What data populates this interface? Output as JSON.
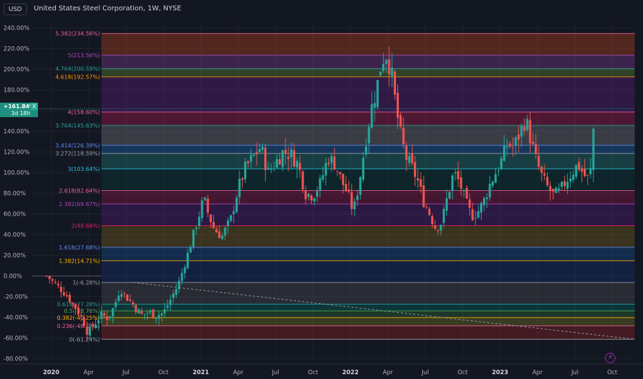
{
  "header": {
    "currency": "USD",
    "title": "United States Steel Corporation, 1W, NYSE"
  },
  "price_badge": {
    "value": "+161.84%",
    "countdown": "3d 18h",
    "close_label": "X"
  },
  "icons": {
    "bolt": "lightning-icon"
  },
  "colors": {
    "background": "#131722",
    "up": "#26a69a",
    "down": "#ef5350",
    "axis_text": "#b2b5be",
    "grid": "#1e222d"
  },
  "chart_data": {
    "type": "candlestick",
    "title": "United States Steel Corporation, 1W, NYSE",
    "y_axis": {
      "unit": "%",
      "ticks": [
        "240.00%",
        "220.00%",
        "200.00%",
        "180.00%",
        "160.00%",
        "140.00%",
        "120.00%",
        "100.00%",
        "80.00%",
        "60.00%",
        "40.00%",
        "20.00%",
        "0.00%",
        "-20.00%",
        "-40.00%",
        "-60.00%",
        "-80.00%"
      ],
      "range": [
        -85,
        247
      ]
    },
    "x_axis": {
      "ticks": [
        "2020",
        "Apr",
        "Jul",
        "Oct",
        "2021",
        "Apr",
        "Jul",
        "Oct",
        "2022",
        "Apr",
        "Jul",
        "Oct",
        "2023",
        "Apr",
        "Jul",
        "Oct"
      ],
      "ticks_years": [
        2020.0,
        2020.25,
        2020.5,
        2020.75,
        2021.0,
        2021.25,
        2021.5,
        2021.75,
        2022.0,
        2022.25,
        2022.5,
        2022.75,
        2023.0,
        2023.25,
        2023.5,
        2023.75
      ],
      "range_years": [
        2019.87,
        2023.9
      ]
    },
    "current_value": 161.84,
    "fib_levels": [
      {
        "ratio": "5.382",
        "value": 234.56,
        "label": "5.382(234.56%)",
        "color": "#f06292"
      },
      {
        "ratio": "5",
        "value": 213.56,
        "label": "5(213.56%)",
        "color": "#ab47bc"
      },
      {
        "ratio": "4.764",
        "value": 200.59,
        "label": "4.764(200.59%)",
        "color": "#26a69a"
      },
      {
        "ratio": "4.618",
        "value": 192.57,
        "label": "4.618(192.57%)",
        "color": "#ff9800"
      },
      {
        "ratio": "4",
        "value": 158.6,
        "label": "4(158.60%)",
        "color": "#f06292"
      },
      {
        "ratio": "3.764",
        "value": 145.63,
        "label": "3.764(145.63%)",
        "color": "#26a69a"
      },
      {
        "ratio": "3.414",
        "value": 126.39,
        "label": "3.414(126.39%)",
        "color": "#5c8cff"
      },
      {
        "ratio": "3.272",
        "value": 118.59,
        "label": "3.272(118.59%)",
        "color": "#9aa0aa"
      },
      {
        "ratio": "3",
        "value": 103.64,
        "label": "3(103.64%)",
        "color": "#26c6da"
      },
      {
        "ratio": "2.618",
        "value": 82.64,
        "label": "2.618(82.64%)",
        "color": "#f06292"
      },
      {
        "ratio": "2.382",
        "value": 69.67,
        "label": "2.382(69.67%)",
        "color": "#ab47bc"
      },
      {
        "ratio": "2",
        "value": 48.68,
        "label": "2(48.68%)",
        "color": "#e91e63"
      },
      {
        "ratio": "1.618",
        "value": 27.68,
        "label": "1.618(27.68%)",
        "color": "#5c8cff"
      },
      {
        "ratio": "1.382",
        "value": 14.71,
        "label": "1.382(14.71%)",
        "color": "#ffb300"
      },
      {
        "ratio": "1",
        "value": -6.28,
        "label": "1(-6.28%)",
        "color": "#9aa0aa"
      },
      {
        "ratio": "0.618",
        "value": -27.28,
        "label": "0.618(-27.28%)",
        "color": "#26a69a"
      },
      {
        "ratio": "0.5",
        "value": -33.76,
        "label": "0.5(-33.76%)",
        "color": "#4caf50"
      },
      {
        "ratio": "0.382",
        "value": -40.25,
        "label": "0.382(-40.25%)",
        "color": "#ffb300"
      },
      {
        "ratio": "0.236",
        "value": -48.27,
        "label": "0.236(-48.27%)",
        "color": "#f06292"
      },
      {
        "ratio": "0",
        "value": -61.24,
        "label": "0(-61.24%)",
        "color": "#9aa0aa"
      }
    ],
    "fib_bands": [
      {
        "from": 213.56,
        "to": 234.56,
        "color": "#f4511e"
      },
      {
        "from": 200.59,
        "to": 213.56,
        "color": "#ab47bc"
      },
      {
        "from": 192.57,
        "to": 200.59,
        "color": "#7cb342"
      },
      {
        "from": 158.6,
        "to": 192.57,
        "color": "#7b1fa2"
      },
      {
        "from": 145.63,
        "to": 158.6,
        "color": "#e91e63"
      },
      {
        "from": 126.39,
        "to": 145.63,
        "color": "#9e9e9e"
      },
      {
        "from": 118.59,
        "to": 126.39,
        "color": "#1e88e5"
      },
      {
        "from": 103.64,
        "to": 118.59,
        "color": "#26a69a"
      },
      {
        "from": 82.64,
        "to": 103.64,
        "color": "#004d40"
      },
      {
        "from": 69.67,
        "to": 82.64,
        "color": "#c2185b"
      },
      {
        "from": 48.68,
        "to": 69.67,
        "color": "#6a1b9a"
      },
      {
        "from": 27.68,
        "to": 48.68,
        "color": "#9e7c1a"
      },
      {
        "from": 14.71,
        "to": 27.68,
        "color": "#1565c0"
      },
      {
        "from": -6.28,
        "to": 14.71,
        "color": "#1a3a8f"
      },
      {
        "from": -27.28,
        "to": -6.28,
        "color": "#616161"
      },
      {
        "from": -33.76,
        "to": -27.28,
        "color": "#00897b"
      },
      {
        "from": -40.25,
        "to": -33.76,
        "color": "#388e3c"
      },
      {
        "from": -48.27,
        "to": -40.25,
        "color": "#9e9d24"
      },
      {
        "from": -61.24,
        "to": -48.27,
        "color": "#c62828"
      }
    ],
    "trend_line": {
      "from": [
        2020.55,
        -6.28
      ],
      "to": [
        2023.9,
        -61.24
      ]
    },
    "close_path": [
      [
        2019.97,
        0
      ],
      [
        2020.03,
        -8
      ],
      [
        2020.1,
        -18
      ],
      [
        2020.17,
        -32
      ],
      [
        2020.22,
        -45
      ],
      [
        2020.25,
        -56
      ],
      [
        2020.28,
        -48
      ],
      [
        2020.33,
        -38
      ],
      [
        2020.38,
        -40
      ],
      [
        2020.42,
        -30
      ],
      [
        2020.46,
        -12
      ],
      [
        2020.5,
        -20
      ],
      [
        2020.55,
        -28
      ],
      [
        2020.6,
        -38
      ],
      [
        2020.65,
        -35
      ],
      [
        2020.7,
        -38
      ],
      [
        2020.75,
        -36
      ],
      [
        2020.8,
        -22
      ],
      [
        2020.85,
        -8
      ],
      [
        2020.9,
        15
      ],
      [
        2020.94,
        35
      ],
      [
        2020.98,
        55
      ],
      [
        2021.02,
        75
      ],
      [
        2021.05,
        60
      ],
      [
        2021.09,
        45
      ],
      [
        2021.14,
        38
      ],
      [
        2021.2,
        55
      ],
      [
        2021.25,
        85
      ],
      [
        2021.3,
        105
      ],
      [
        2021.35,
        115
      ],
      [
        2021.4,
        125
      ],
      [
        2021.45,
        100
      ],
      [
        2021.5,
        110
      ],
      [
        2021.55,
        120
      ],
      [
        2021.6,
        118
      ],
      [
        2021.65,
        108
      ],
      [
        2021.7,
        80
      ],
      [
        2021.75,
        78
      ],
      [
        2021.8,
        90
      ],
      [
        2021.85,
        115
      ],
      [
        2021.9,
        108
      ],
      [
        2021.94,
        92
      ],
      [
        2021.98,
        80
      ],
      [
        2022.02,
        62
      ],
      [
        2022.06,
        92
      ],
      [
        2022.1,
        130
      ],
      [
        2022.14,
        162
      ],
      [
        2022.18,
        185
      ],
      [
        2022.21,
        210
      ],
      [
        2022.24,
        215
      ],
      [
        2022.27,
        200
      ],
      [
        2022.3,
        168
      ],
      [
        2022.33,
        140
      ],
      [
        2022.37,
        115
      ],
      [
        2022.41,
        105
      ],
      [
        2022.45,
        92
      ],
      [
        2022.49,
        72
      ],
      [
        2022.53,
        60
      ],
      [
        2022.57,
        46
      ],
      [
        2022.61,
        52
      ],
      [
        2022.65,
        78
      ],
      [
        2022.69,
        100
      ],
      [
        2022.73,
        90
      ],
      [
        2022.77,
        72
      ],
      [
        2022.81,
        58
      ],
      [
        2022.85,
        62
      ],
      [
        2022.89,
        72
      ],
      [
        2022.93,
        88
      ],
      [
        2022.97,
        100
      ],
      [
        2023.01,
        112
      ],
      [
        2023.05,
        128
      ],
      [
        2023.09,
        124
      ],
      [
        2023.13,
        138
      ],
      [
        2023.17,
        152
      ],
      [
        2023.2,
        135
      ],
      [
        2023.24,
        112
      ],
      [
        2023.28,
        96
      ],
      [
        2023.32,
        85
      ],
      [
        2023.36,
        78
      ],
      [
        2023.4,
        82
      ],
      [
        2023.44,
        92
      ],
      [
        2023.48,
        100
      ],
      [
        2023.52,
        108
      ],
      [
        2023.56,
        98
      ],
      [
        2023.6,
        92
      ],
      [
        2023.63,
        155
      ]
    ]
  }
}
